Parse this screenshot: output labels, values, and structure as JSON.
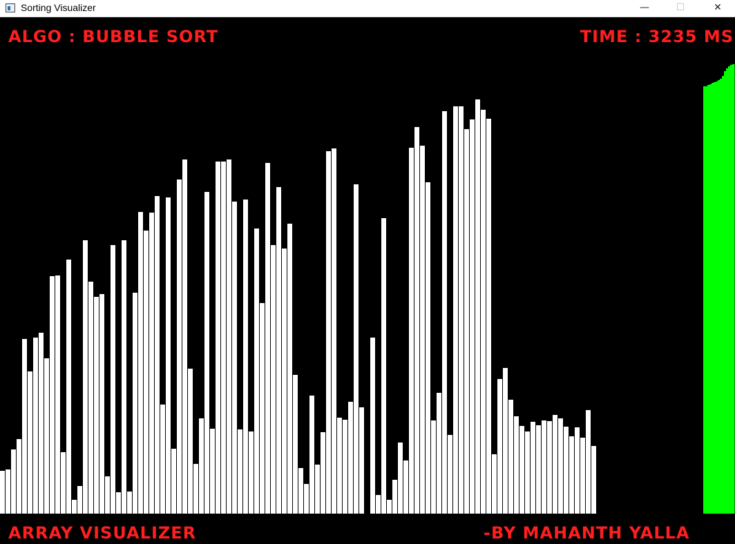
{
  "window": {
    "title": "Sorting Visualizer",
    "minimize_glyph": "—",
    "maximize_glyph": "☐",
    "close_glyph": "✕",
    "icon": "app-window-icon"
  },
  "hud": {
    "algo_label": "ALGO : BUBBLE SORT",
    "time_label": "TIME : 3235 MS",
    "app_label": "ARRAY VISUALIZER",
    "author_label": "-BY MAHANTH YALLA"
  },
  "colors": {
    "background": "#000000",
    "bar_unsorted": "#ffffff",
    "bar_sorted": "#00ff00",
    "hud_text": "#ff1f1f"
  },
  "chart_data": {
    "type": "bar",
    "baseline_top": 744,
    "unsorted_heights_px": [
      62,
      64,
      93,
      108,
      253,
      206,
      255,
      262,
      225,
      344,
      345,
      89,
      368,
      20,
      40,
      396,
      336,
      314,
      318,
      54,
      389,
      31,
      396,
      32,
      320,
      437,
      410,
      436,
      460,
      158,
      458,
      94,
      484,
      513,
      210,
      72,
      138,
      466,
      123,
      510,
      510,
      513,
      452,
      122,
      455,
      119,
      413,
      305,
      508,
      389,
      473,
      384,
      420,
      201,
      66,
      43,
      171,
      71,
      118,
      525,
      529,
      139,
      136,
      162,
      477,
      154,
      0,
      255,
      27,
      428,
      20,
      49,
      103,
      77,
      530,
      560,
      533,
      480,
      135,
      175,
      583,
      114,
      590,
      590,
      557,
      571,
      600,
      585,
      572,
      86,
      195,
      211,
      165,
      141,
      127,
      119,
      133,
      128,
      135,
      134,
      143,
      138,
      126,
      112,
      125,
      110,
      150,
      98
    ]
  }
}
